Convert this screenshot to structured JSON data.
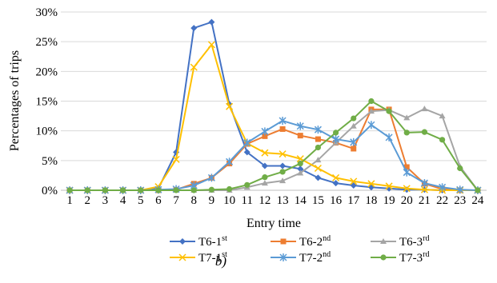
{
  "chart_data": {
    "type": "line",
    "title": "",
    "xlabel": "Entry time",
    "ylabel": "Percentages of trips",
    "caption": "b)",
    "x": [
      1,
      2,
      3,
      4,
      5,
      6,
      7,
      8,
      9,
      10,
      11,
      12,
      13,
      14,
      15,
      16,
      17,
      18,
      19,
      20,
      21,
      22,
      23,
      24
    ],
    "ylim": [
      0,
      30
    ],
    "yticks": [
      0,
      5,
      10,
      15,
      20,
      25,
      30
    ],
    "ytick_labels": [
      "0%",
      "5%",
      "10%",
      "15%",
      "20%",
      "25%",
      "30%"
    ],
    "grid": "horizontal",
    "legend_position": "bottom",
    "series": [
      {
        "name": "T6-1",
        "sup": "st",
        "color": "#4472C4",
        "marker": "diamond",
        "values": [
          0,
          0,
          0,
          0,
          0,
          0.3,
          6.4,
          27.3,
          28.3,
          14.5,
          6.4,
          4.1,
          4.1,
          3.6,
          2.1,
          1.2,
          0.8,
          0.5,
          0.3,
          0.1,
          0.1,
          0,
          0,
          0
        ]
      },
      {
        "name": "T6-2",
        "sup": "nd",
        "color": "#ED7D31",
        "marker": "square",
        "values": [
          0,
          0,
          0,
          0,
          0,
          0,
          0.1,
          1.1,
          2.1,
          4.5,
          7.8,
          9.1,
          10.3,
          9.2,
          8.6,
          8.0,
          7.0,
          13.6,
          13.6,
          3.9,
          1.1,
          0.2,
          0,
          0
        ]
      },
      {
        "name": "T6-3",
        "sup": "rd",
        "color": "#A5A5A5",
        "marker": "triangle",
        "values": [
          0,
          0,
          0,
          0,
          0,
          0,
          0,
          0,
          0,
          0,
          0.5,
          1.2,
          1.6,
          2.9,
          5.1,
          8.0,
          10.8,
          13.3,
          13.5,
          12.2,
          13.7,
          12.5,
          4.0,
          0
        ]
      },
      {
        "name": "T7-1",
        "sup": "st",
        "color": "#FFC000",
        "marker": "x",
        "values": [
          0,
          0,
          0,
          0,
          0,
          0.6,
          5.2,
          20.7,
          24.5,
          14.1,
          7.9,
          6.3,
          6.1,
          5.3,
          3.7,
          2.1,
          1.5,
          1.1,
          0.7,
          0.3,
          0.1,
          0,
          0,
          0
        ]
      },
      {
        "name": "T7-2",
        "sup": "nd",
        "color": "#5B9BD5",
        "marker": "star",
        "values": [
          0,
          0,
          0,
          0,
          0,
          0.1,
          0.2,
          0.8,
          2.1,
          4.8,
          8.0,
          9.9,
          11.7,
          10.8,
          10.2,
          8.6,
          8.1,
          11.0,
          8.9,
          3.0,
          1.2,
          0.5,
          0.1,
          0
        ]
      },
      {
        "name": "T7-3",
        "sup": "rd",
        "color": "#70AD47",
        "marker": "circle",
        "values": [
          0,
          0,
          0,
          0,
          0,
          0,
          0,
          0,
          0.1,
          0.2,
          0.9,
          2.2,
          3.1,
          4.5,
          7.2,
          9.7,
          12.1,
          15.0,
          13.3,
          9.7,
          9.8,
          8.5,
          3.7,
          0
        ]
      }
    ]
  }
}
